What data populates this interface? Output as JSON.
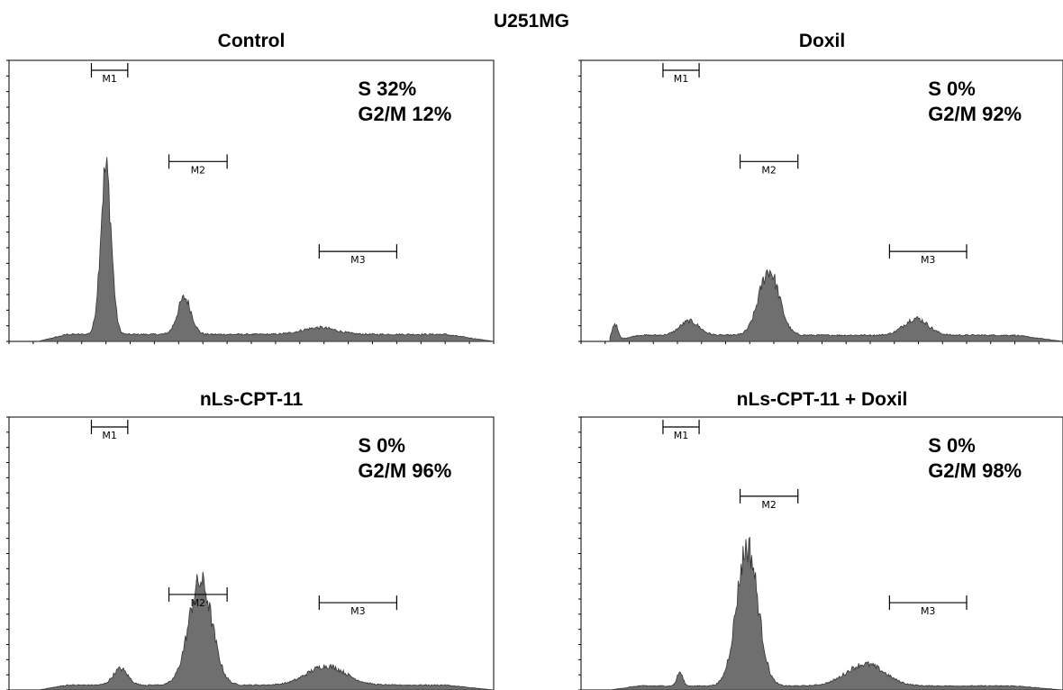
{
  "figure_title": "U251MG",
  "chart_data": [
    {
      "type": "area",
      "title": "Control",
      "xlabel": "",
      "ylabel": "",
      "grid": false,
      "annotations": [
        "S 32%",
        "G2/M 12%"
      ],
      "markers": [
        "M1",
        "M2",
        "M3"
      ],
      "x_range": [
        0,
        1000
      ],
      "y_range": [
        0,
        100
      ],
      "peaks": [
        {
          "x": 200,
          "h": 59,
          "w": 11
        },
        {
          "x": 362,
          "h": 13,
          "w": 14
        },
        {
          "x": 640,
          "h": 2.4,
          "w": 35
        }
      ],
      "baseline": 2.5,
      "marker_ranges": [
        [
          170,
          245
        ],
        [
          330,
          450
        ],
        [
          640,
          800
        ]
      ]
    },
    {
      "type": "area",
      "title": "Doxil",
      "xlabel": "",
      "ylabel": "",
      "grid": false,
      "annotations": [
        "S 0%",
        "G2/M 92%"
      ],
      "markers": [
        "M1",
        "M2",
        "M3"
      ],
      "x_range": [
        0,
        1000
      ],
      "y_range": [
        0,
        100
      ],
      "peaks": [
        {
          "x": 70,
          "h": 6,
          "w": 6
        },
        {
          "x": 225,
          "h": 5,
          "w": 20
        },
        {
          "x": 390,
          "h": 23,
          "w": 21
        },
        {
          "x": 695,
          "h": 6,
          "w": 25
        }
      ],
      "baseline": 2.2,
      "marker_ranges": [
        [
          170,
          245
        ],
        [
          330,
          450
        ],
        [
          640,
          800
        ]
      ]
    },
    {
      "type": "area",
      "title": "nLs-CPT-11",
      "xlabel": "",
      "ylabel": "",
      "grid": false,
      "annotations": [
        "S 0%",
        "G2/M 96%"
      ],
      "markers": [
        "M1",
        "M2",
        "M3"
      ],
      "x_range": [
        0,
        1000
      ],
      "y_range": [
        0,
        100
      ],
      "peaks": [
        {
          "x": 230,
          "h": 6,
          "w": 15
        },
        {
          "x": 395,
          "h": 38,
          "w": 24
        },
        {
          "x": 655,
          "h": 7,
          "w": 40
        }
      ],
      "baseline": 1.8,
      "marker_ranges": [
        [
          170,
          245
        ],
        [
          330,
          450
        ],
        [
          640,
          800
        ]
      ]
    },
    {
      "type": "area",
      "title": "nLs-CPT-11 + Doxil",
      "xlabel": "",
      "ylabel": "",
      "grid": false,
      "annotations": [
        "S 0%",
        "G2/M 98%"
      ],
      "markers": [
        "M1",
        "M2",
        "M3"
      ],
      "x_range": [
        0,
        1000
      ],
      "y_range": [
        0,
        100
      ],
      "peaks": [
        {
          "x": 205,
          "h": 5,
          "w": 6
        },
        {
          "x": 345,
          "h": 51,
          "w": 22
        },
        {
          "x": 590,
          "h": 8,
          "w": 40
        }
      ],
      "baseline": 1.5,
      "marker_ranges": [
        [
          170,
          245
        ],
        [
          330,
          450
        ],
        [
          640,
          800
        ]
      ]
    }
  ]
}
